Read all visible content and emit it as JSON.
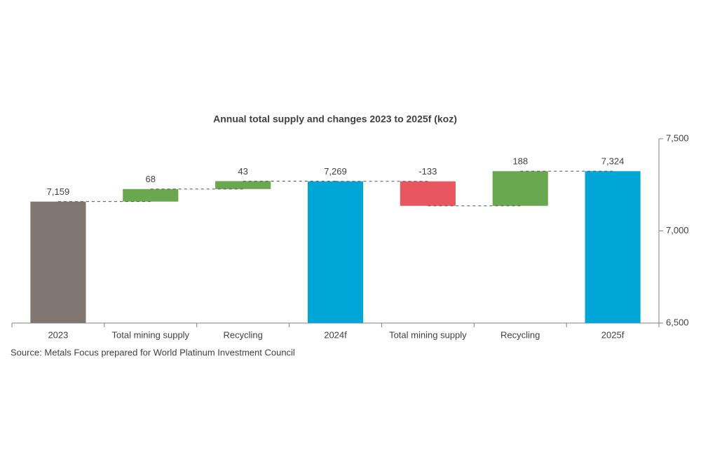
{
  "chart_data": {
    "type": "waterfall",
    "title": "Annual total supply and changes 2023 to 2025f (koz)",
    "source": "Source: Metals Focus prepared for World Platinum Investment Council",
    "categories": [
      "2023",
      "Total mining supply",
      "Recycling",
      "2024f",
      "Total mining supply",
      "Recycling",
      "2025f"
    ],
    "values": [
      7159,
      68,
      43,
      7269,
      -133,
      188,
      7324
    ],
    "value_labels": [
      "7,159",
      "68",
      "43",
      "7,269",
      "-133",
      "188",
      "7,324"
    ],
    "is_total": [
      true,
      false,
      false,
      true,
      false,
      false,
      true
    ],
    "colors": [
      "#7f7770",
      "#6aa84f",
      "#6aa84f",
      "#00a7d6",
      "#e8575f",
      "#6aa84f",
      "#00a7d6"
    ],
    "ylim": [
      6500,
      7500
    ],
    "yticks": [
      {
        "value": 6500,
        "label": "6,500"
      },
      {
        "value": 7000,
        "label": "7,000"
      },
      {
        "value": 7500,
        "label": "7,500"
      }
    ],
    "y_axis_side": "right",
    "grid": false
  }
}
